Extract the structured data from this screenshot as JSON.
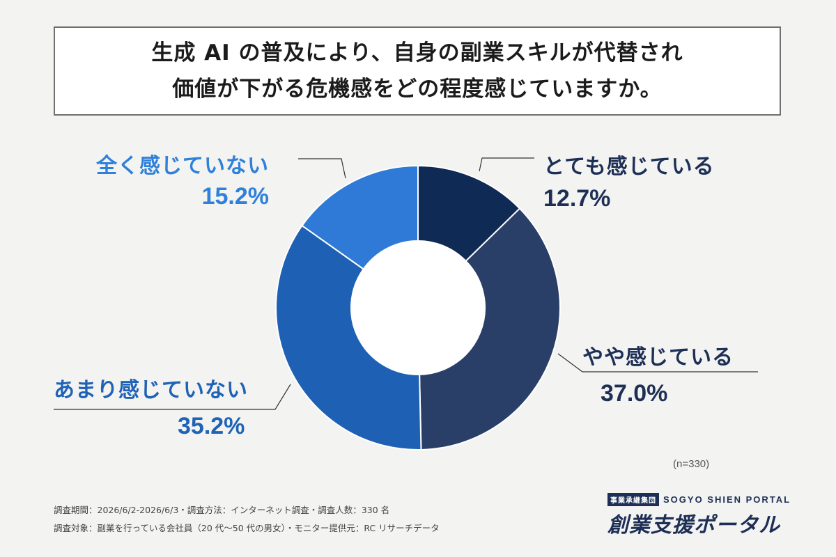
{
  "title": {
    "line1": "生成 AI の普及により、自身の副業スキルが代替され",
    "line2": "価値が下がる危機感をどの程度感じていますか。"
  },
  "chart_data": {
    "type": "pie",
    "donut": true,
    "slices": [
      {
        "label": "とても感じている",
        "value": 12.7,
        "display": "12.7%",
        "color": "#0e2a55"
      },
      {
        "label": "やや感じている",
        "value": 37.0,
        "display": "37.0%",
        "color": "#2a3f68"
      },
      {
        "label": "あまり感じていない",
        "value": 35.2,
        "display": "35.2%",
        "color": "#1e60b4"
      },
      {
        "label": "全く感じていない",
        "value": 15.2,
        "display": "15.2%",
        "color": "#2f7ad6"
      }
    ],
    "label_colors": {
      "とても感じている": "#1d2f55",
      "やや感じている": "#1d2f55",
      "あまり感じていない": "#1f63b6",
      "全く感じていない": "#2f80da"
    }
  },
  "sample_size": "(n=330)",
  "footnotes": [
    "調査期間：2026/6/2-2026/6/3・調査方法：インターネット調査・調査人数：330 名",
    "調査対象：副業を行っている会社員（20 代〜50 代の男女）・モニター提供元：RC リサーチデータ"
  ],
  "logo": {
    "badge": "事業承継集団",
    "english": "SOGYO SHIEN PORTAL",
    "japanese": "創業支援ポータル"
  }
}
